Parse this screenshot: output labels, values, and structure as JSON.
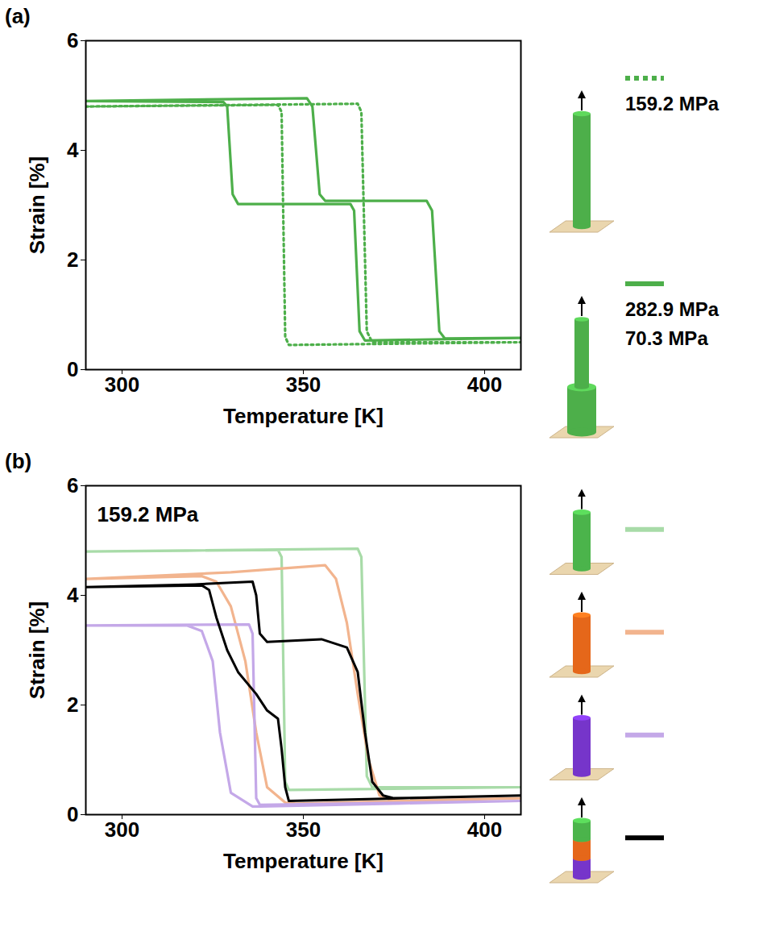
{
  "chart_data": [
    {
      "type": "line",
      "title": "(a)",
      "x_label": "Temperature [K]",
      "y_label": "Strain [%]",
      "xlim": [
        290,
        410
      ],
      "xticks": [
        300,
        350,
        400
      ],
      "ylim": [
        0,
        6
      ],
      "yticks": [
        0,
        2,
        4,
        6
      ],
      "grid": false,
      "legend": "right",
      "series": [
        {
          "name": "159.2 MPa",
          "color": "#4daf4a",
          "line_style": "dotted",
          "x": [
            290,
            365,
            366,
            367.5,
            369,
            410,
            346,
            345,
            344,
            343,
            290
          ],
          "values": [
            4.8,
            4.85,
            4.7,
            0.7,
            0.5,
            0.5,
            0.45,
            0.6,
            4.7,
            4.83,
            4.8
          ]
        },
        {
          "name": [
            "282.9 MPa",
            "70.3 MPa"
          ],
          "color": "#4daf4a",
          "line_style": "solid",
          "x": [
            290,
            351,
            352.5,
            354.5,
            356,
            384,
            385.5,
            387.5,
            389,
            410,
            367,
            365.5,
            364,
            363,
            332,
            330.5,
            329,
            328,
            290
          ],
          "values": [
            4.9,
            4.95,
            4.8,
            3.2,
            3.08,
            3.08,
            2.9,
            0.7,
            0.57,
            0.58,
            0.53,
            0.7,
            2.9,
            3.02,
            3.02,
            3.2,
            4.8,
            4.88,
            4.9
          ]
        }
      ]
    },
    {
      "type": "line",
      "title": "(b)",
      "x_label": "Temperature [K]",
      "y_label": "Strain [%]",
      "xlim": [
        290,
        410
      ],
      "xticks": [
        300,
        350,
        400
      ],
      "ylim": [
        0,
        6
      ],
      "yticks": [
        0,
        2,
        4,
        6
      ],
      "grid": false,
      "legend": "right",
      "annotations": [
        "159.2 MPa"
      ],
      "series": [
        {
          "color": "#a8dba8",
          "line_style": "solid",
          "x": [
            290,
            365,
            366,
            367.5,
            369,
            410,
            346,
            345,
            344,
            343,
            290
          ],
          "values": [
            4.8,
            4.85,
            4.7,
            0.7,
            0.5,
            0.5,
            0.45,
            0.6,
            4.7,
            4.83,
            4.8
          ]
        },
        {
          "color": "#f2b48e",
          "line_style": "solid",
          "x": [
            290,
            330,
            356,
            359,
            362,
            365,
            368,
            371,
            375,
            410,
            348,
            345,
            340,
            337,
            334,
            330,
            326,
            322,
            290
          ],
          "values": [
            4.3,
            4.42,
            4.55,
            4.3,
            3.5,
            2.2,
            1.0,
            0.35,
            0.25,
            0.3,
            0.2,
            0.22,
            0.5,
            1.5,
            2.8,
            3.8,
            4.25,
            4.35,
            4.3
          ]
        },
        {
          "color": "#c4a8e8",
          "line_style": "solid",
          "x": [
            290,
            335,
            336,
            337,
            338,
            410,
            338,
            336,
            330,
            327,
            325,
            322,
            318,
            290
          ],
          "values": [
            3.45,
            3.47,
            3.3,
            0.3,
            0.18,
            0.25,
            0.15,
            0.15,
            0.4,
            1.5,
            2.8,
            3.35,
            3.45,
            3.45
          ]
        },
        {
          "color": "#000000",
          "line_style": "solid",
          "x": [
            290,
            320,
            336,
            337,
            338,
            340,
            355,
            362,
            365,
            367,
            369,
            372,
            375,
            410,
            346,
            345,
            344,
            343,
            340,
            337,
            332,
            329,
            326,
            324,
            322,
            290
          ],
          "values": [
            4.15,
            4.2,
            4.25,
            4.0,
            3.3,
            3.15,
            3.2,
            3.05,
            2.6,
            1.5,
            0.6,
            0.35,
            0.3,
            0.35,
            0.25,
            0.5,
            1.2,
            1.75,
            1.9,
            2.2,
            2.6,
            3.0,
            3.6,
            4.1,
            4.18,
            4.15
          ]
        }
      ]
    }
  ]
}
